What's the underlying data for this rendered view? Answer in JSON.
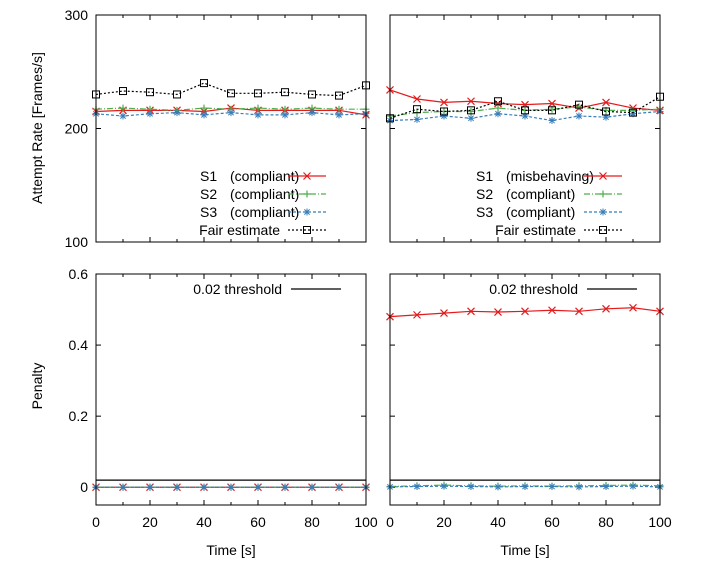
{
  "figure": {
    "x_label": "Time [s]",
    "y_label_top": "Attempt Rate [Frames/s]",
    "y_label_bottom": "Penalty"
  },
  "chart_data": [
    {
      "type": "line",
      "panel": "top-left",
      "xlim": [
        0,
        100
      ],
      "ylim": [
        100,
        300
      ],
      "x_ticks": [],
      "y_ticks": [
        "100",
        "200",
        "300"
      ],
      "x": [
        0,
        10,
        20,
        30,
        40,
        50,
        60,
        70,
        80,
        90,
        100
      ],
      "legend_position": "bottom-right",
      "series": [
        {
          "name": "S1",
          "tag": "(compliant)",
          "color": "#e41a1c",
          "marker": "x",
          "dash": "",
          "values": [
            215,
            216,
            216,
            216,
            215,
            218,
            216,
            216,
            216,
            216,
            212
          ]
        },
        {
          "name": "S2",
          "tag": "(compliant)",
          "color": "#4daf4a",
          "marker": "+",
          "dash": "6 2 1 2",
          "values": [
            217,
            218,
            217,
            216,
            218,
            217,
            218,
            217,
            218,
            217,
            217
          ]
        },
        {
          "name": "S3",
          "tag": "(compliant)",
          "color": "#377eb8",
          "marker": "*",
          "dash": "3 2",
          "values": [
            213,
            211,
            213,
            214,
            212,
            214,
            212,
            212,
            214,
            212,
            213
          ]
        },
        {
          "name": "Fair estimate",
          "tag": "",
          "color": "#000000",
          "marker": "square",
          "dash": "2 2",
          "values": [
            230,
            233,
            232,
            230,
            240,
            231,
            231,
            232,
            230,
            229,
            238
          ]
        }
      ]
    },
    {
      "type": "line",
      "panel": "top-right",
      "xlim": [
        0,
        100
      ],
      "ylim": [
        100,
        300
      ],
      "x_ticks": [],
      "y_ticks": [],
      "x": [
        0,
        10,
        20,
        30,
        40,
        50,
        60,
        70,
        80,
        90,
        100
      ],
      "legend_position": "bottom-right",
      "series": [
        {
          "name": "S1",
          "tag": "(misbehaving)",
          "color": "#e41a1c",
          "marker": "x",
          "dash": "",
          "values": [
            234,
            226,
            223,
            224,
            222,
            221,
            222,
            218,
            223,
            218,
            216
          ]
        },
        {
          "name": "S2",
          "tag": "(compliant)",
          "color": "#4daf4a",
          "marker": "+",
          "dash": "6 2 1 2",
          "values": [
            211,
            214,
            215,
            215,
            218,
            216,
            217,
            219,
            216,
            216,
            217
          ]
        },
        {
          "name": "S3",
          "tag": "(compliant)",
          "color": "#377eb8",
          "marker": "*",
          "dash": "3 2",
          "values": [
            207,
            208,
            211,
            209,
            213,
            211,
            207,
            211,
            210,
            213,
            215
          ]
        },
        {
          "name": "Fair estimate",
          "tag": "",
          "color": "#000000",
          "marker": "square",
          "dash": "2 2",
          "values": [
            209,
            217,
            215,
            216,
            224,
            216,
            216,
            221,
            215,
            214,
            228
          ]
        }
      ]
    },
    {
      "type": "line",
      "panel": "bottom-left",
      "xlim": [
        0,
        100
      ],
      "ylim": [
        -0.05,
        0.6
      ],
      "x_ticks": [
        "0",
        "20",
        "40",
        "60",
        "80",
        "100"
      ],
      "y_ticks": [
        "0",
        "0.2",
        "0.4",
        "0.6"
      ],
      "threshold": 0.02,
      "x": [
        0,
        10,
        20,
        30,
        40,
        50,
        60,
        70,
        80,
        90,
        100
      ],
      "legend_position": "top-right",
      "series": [
        {
          "name": "0.02 threshold",
          "color": "#000000",
          "marker": "none",
          "dash": "",
          "values": [
            0.02,
            0.02,
            0.02,
            0.02,
            0.02,
            0.02,
            0.02,
            0.02,
            0.02,
            0.02,
            0.02
          ]
        },
        {
          "name": "",
          "color": "#e41a1c",
          "marker": "x",
          "dash": "",
          "values": [
            0,
            0,
            0,
            0,
            0,
            0,
            0,
            0,
            0,
            0,
            0
          ]
        },
        {
          "name": "",
          "color": "#4daf4a",
          "marker": "+",
          "dash": "6 2 1 2",
          "values": [
            0,
            0,
            0,
            0,
            0,
            0,
            0,
            0,
            0,
            0,
            0
          ]
        },
        {
          "name": "",
          "color": "#377eb8",
          "marker": "*",
          "dash": "3 2",
          "values": [
            0,
            0,
            0,
            0,
            0,
            0,
            0,
            0,
            0,
            0,
            0
          ]
        }
      ]
    },
    {
      "type": "line",
      "panel": "bottom-right",
      "xlim": [
        0,
        100
      ],
      "ylim": [
        -0.05,
        0.6
      ],
      "x_ticks": [
        "0",
        "20",
        "40",
        "60",
        "80",
        "100"
      ],
      "y_ticks": [],
      "threshold": 0.02,
      "x": [
        0,
        10,
        20,
        30,
        40,
        50,
        60,
        70,
        80,
        90,
        100
      ],
      "legend_position": "top-right",
      "series": [
        {
          "name": "0.02 threshold",
          "color": "#000000",
          "marker": "none",
          "dash": "",
          "values": [
            0.02,
            0.02,
            0.02,
            0.02,
            0.02,
            0.02,
            0.02,
            0.02,
            0.02,
            0.02,
            0.02
          ]
        },
        {
          "name": "",
          "color": "#e41a1c",
          "marker": "x",
          "dash": "",
          "values": [
            0.48,
            0.485,
            0.49,
            0.495,
            0.493,
            0.495,
            0.498,
            0.495,
            0.502,
            0.505,
            0.495
          ]
        },
        {
          "name": "",
          "color": "#4daf4a",
          "marker": "+",
          "dash": "6 2 1 2",
          "values": [
            0.002,
            0.004,
            0.006,
            0.004,
            0.003,
            0.004,
            0.003,
            0.004,
            0.005,
            0.006,
            0.004
          ]
        },
        {
          "name": "",
          "color": "#377eb8",
          "marker": "*",
          "dash": "3 2",
          "values": [
            0.001,
            0.002,
            0.003,
            0.002,
            0.001,
            0.002,
            0.002,
            0.001,
            0.002,
            0.003,
            0.001
          ]
        }
      ]
    }
  ]
}
